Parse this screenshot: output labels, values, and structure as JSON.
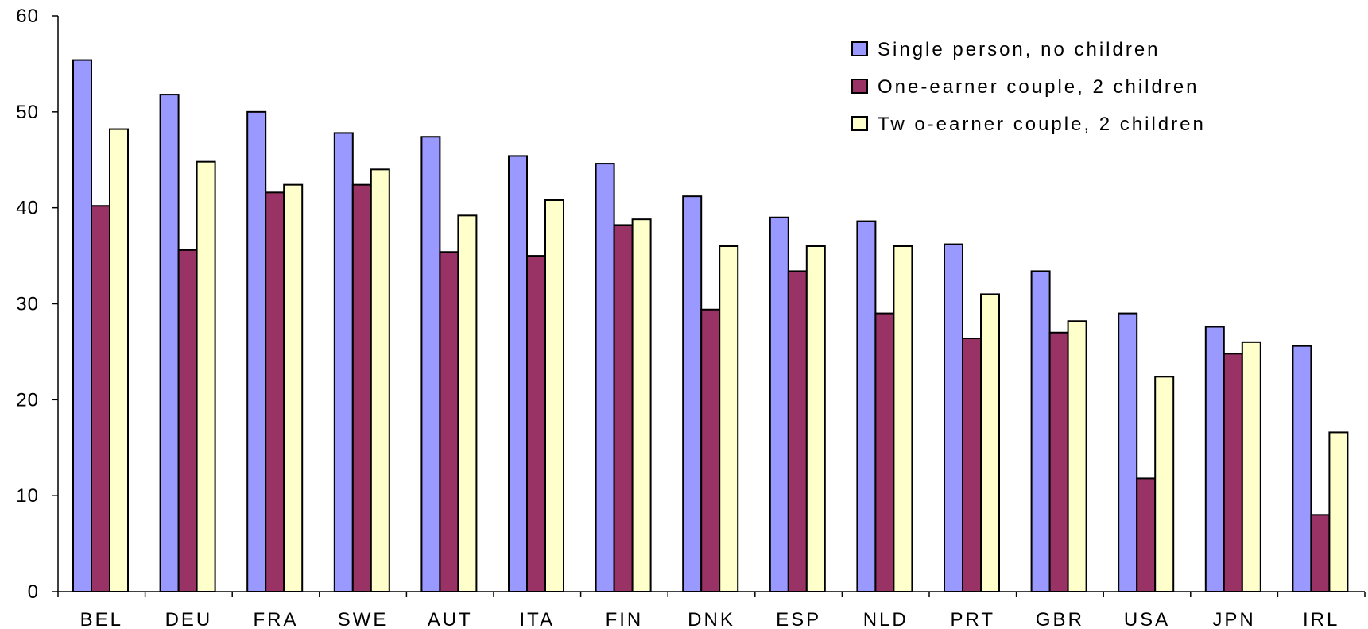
{
  "chart_data": {
    "type": "bar",
    "title": "",
    "xlabel": "",
    "ylabel": "",
    "ylim": [
      0,
      60
    ],
    "yticks": [
      0,
      10,
      20,
      30,
      40,
      50,
      60
    ],
    "grid": false,
    "legend_position": "top-right",
    "categories": [
      "BEL",
      "DEU",
      "FRA",
      "SWE",
      "AUT",
      "ITA",
      "FIN",
      "DNK",
      "ESP",
      "NLD",
      "PRT",
      "GBR",
      "USA",
      "JPN",
      "IRL"
    ],
    "series": [
      {
        "name": "Single person, no children",
        "color": "#9999ff",
        "values": [
          55.4,
          51.8,
          50.0,
          47.8,
          47.4,
          45.4,
          44.6,
          41.2,
          39.0,
          38.6,
          36.2,
          33.4,
          29.0,
          27.6,
          25.6
        ]
      },
      {
        "name": "One-earner couple, 2 children",
        "color": "#993366",
        "values": [
          40.2,
          35.6,
          41.6,
          42.4,
          35.4,
          35.0,
          38.2,
          29.4,
          33.4,
          29.0,
          26.4,
          27.0,
          11.8,
          24.8,
          8.0
        ]
      },
      {
        "name": "Tw o-earner couple, 2 children",
        "color": "#ffffcc",
        "values": [
          48.2,
          44.8,
          42.4,
          44.0,
          39.2,
          40.8,
          38.8,
          36.0,
          36.0,
          36.0,
          31.0,
          28.2,
          22.4,
          26.0,
          16.6
        ]
      }
    ]
  }
}
